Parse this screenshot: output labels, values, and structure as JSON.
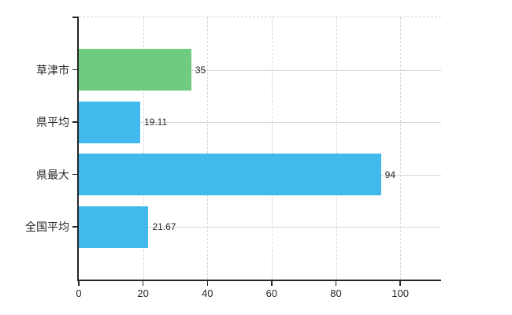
{
  "chart_data": {
    "type": "bar",
    "orientation": "horizontal",
    "categories": [
      "草津市",
      "県平均",
      "県最大",
      "全国平均"
    ],
    "values": [
      35,
      19.11,
      94,
      21.67
    ],
    "value_labels": [
      "35",
      "19.11",
      "94",
      "21.67"
    ],
    "bar_colors": [
      "#6ecb80",
      "#41b9ec",
      "#41b9ec",
      "#41b9ec"
    ],
    "x_ticks": [
      0,
      20,
      40,
      60,
      80,
      100
    ],
    "x_tick_labels": [
      "0",
      "20",
      "40",
      "60",
      "80",
      "100"
    ],
    "xlim": [
      0,
      112.7
    ],
    "grid": true,
    "legend_position": "none",
    "colors": {
      "highlight_bar": "#6ecb80",
      "default_bar": "#41b9ec",
      "axis": "#262626",
      "grid": "#d8d8d8",
      "text": "#262626",
      "background": "#ffffff"
    }
  }
}
